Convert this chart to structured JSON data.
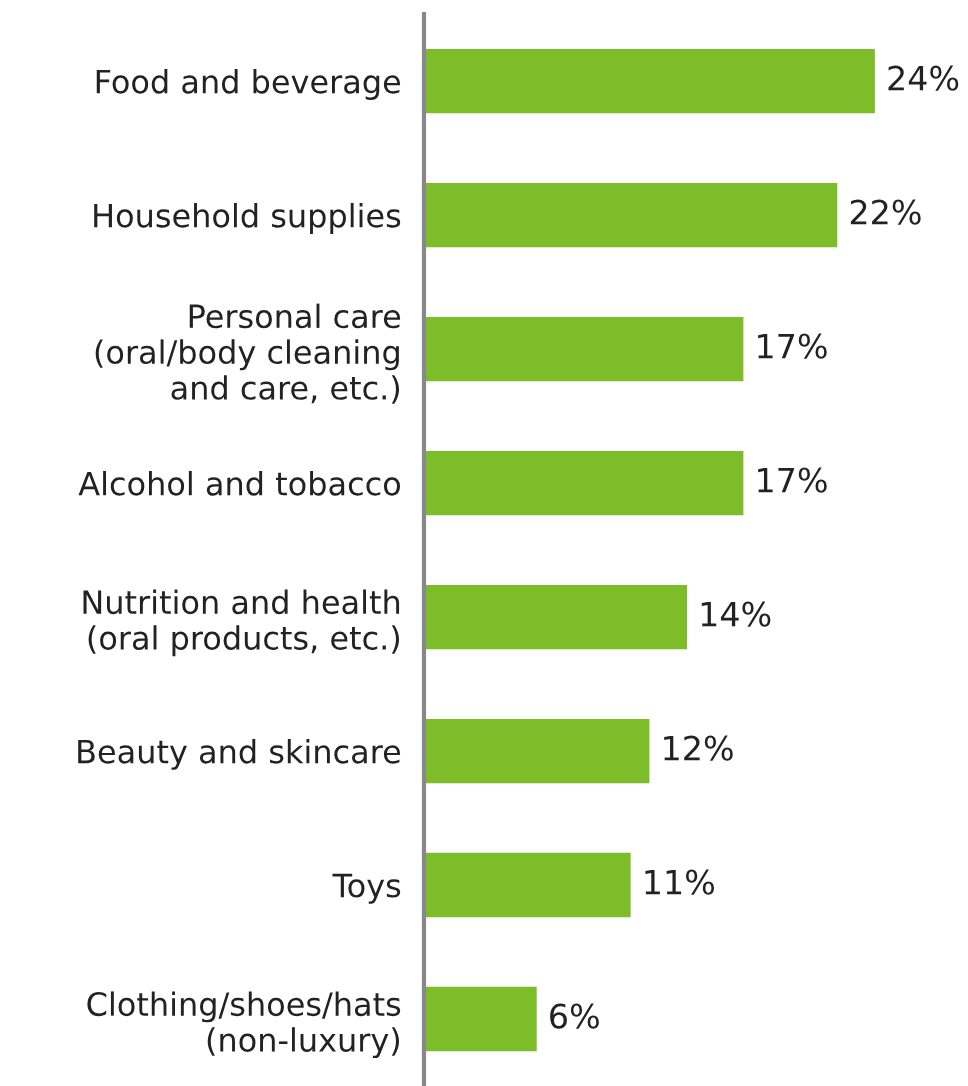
{
  "chart_data": {
    "type": "bar",
    "orientation": "horizontal",
    "categories": [
      "Food and beverage",
      "Household supplies",
      "Personal care\n(oral/body cleaning\nand care, etc.)",
      "Alcohol and tobacco",
      "Nutrition and health\n(oral products, etc.)",
      "Beauty and skincare",
      "Toys",
      "Clothing/shoes/hats\n(non-luxury)"
    ],
    "values": [
      24,
      22,
      17,
      17,
      14,
      12,
      11,
      6
    ],
    "value_labels": [
      "24%",
      "22%",
      "17%",
      "17%",
      "14%",
      "12%",
      "11%",
      "6%"
    ],
    "color": "#7dbd2a",
    "grid": false,
    "legend": false
  }
}
